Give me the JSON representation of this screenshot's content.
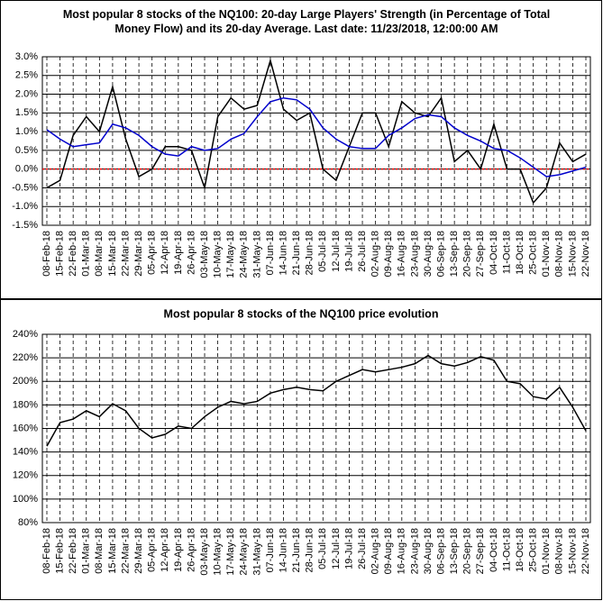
{
  "chart_data": [
    {
      "type": "line",
      "title": "Most popular 8 stocks of the NQ100: 20-day Large Players' Strength (in Percentage of Total Money Flow) and its 20-day Average. Last date: 11/23/2018, 12:00:00 AM",
      "categories": [
        "08-Feb-18",
        "15-Feb-18",
        "22-Feb-18",
        "01-Mar-18",
        "08-Mar-18",
        "15-Mar-18",
        "22-Mar-18",
        "29-Mar-18",
        "05-Apr-18",
        "12-Apr-18",
        "19-Apr-18",
        "26-Apr-18",
        "03-May-18",
        "10-May-18",
        "17-May-18",
        "24-May-18",
        "31-May-18",
        "07-Jun-18",
        "14-Jun-18",
        "21-Jun-18",
        "28-Jun-18",
        "05-Jul-18",
        "12-Jul-18",
        "19-Jul-18",
        "26-Jul-18",
        "02-Aug-18",
        "09-Aug-18",
        "16-Aug-18",
        "23-Aug-18",
        "30-Aug-18",
        "06-Sep-18",
        "13-Sep-18",
        "20-Sep-18",
        "27-Sep-18",
        "04-Oct-18",
        "11-Oct-18",
        "18-Oct-18",
        "25-Oct-18",
        "01-Nov-18",
        "08-Nov-18",
        "15-Nov-18",
        "22-Nov-18"
      ],
      "series": [
        {
          "color": "#000000",
          "values": [
            -0.5,
            -0.3,
            0.9,
            1.4,
            1.0,
            2.2,
            0.8,
            -0.2,
            0.0,
            0.6,
            0.6,
            0.5,
            -0.5,
            1.4,
            1.9,
            1.6,
            1.7,
            2.9,
            1.6,
            1.3,
            1.5,
            0.0,
            -0.3,
            0.6,
            1.5,
            1.5,
            0.6,
            1.8,
            1.5,
            1.4,
            1.9,
            0.2,
            0.5,
            0.0,
            1.2,
            0.0,
            0.0,
            -0.9,
            -0.5,
            0.7,
            0.2,
            0.4
          ]
        },
        {
          "color": "#0000cc",
          "values": [
            1.05,
            0.8,
            0.6,
            0.65,
            0.7,
            1.2,
            1.1,
            0.9,
            0.6,
            0.4,
            0.35,
            0.6,
            0.5,
            0.55,
            0.8,
            0.95,
            1.4,
            1.8,
            1.9,
            1.85,
            1.6,
            1.1,
            0.8,
            0.6,
            0.55,
            0.55,
            0.9,
            1.1,
            1.35,
            1.45,
            1.4,
            1.1,
            0.9,
            0.75,
            0.55,
            0.5,
            0.3,
            0.05,
            -0.2,
            -0.15,
            -0.05,
            0.05
          ]
        }
      ],
      "ylim": [
        -1.5,
        3.0
      ],
      "yticks": [
        {
          "value": -1.5,
          "label": "-1.5%"
        },
        {
          "value": -1.0,
          "label": "-1.0%"
        },
        {
          "value": -0.5,
          "label": "-0.5%"
        },
        {
          "value": 0,
          "label": "0.0%"
        },
        {
          "value": 0.5,
          "label": "0.5%"
        },
        {
          "value": 1.0,
          "label": "1.0%"
        },
        {
          "value": 1.5,
          "label": "1.5%"
        },
        {
          "value": 2.0,
          "label": "2.0%"
        },
        {
          "value": 2.5,
          "label": "2.5%"
        },
        {
          "value": 3.0,
          "label": "3.0%"
        }
      ],
      "grid": true,
      "zero_line_color": "#ff0000"
    },
    {
      "type": "line",
      "title": "Most popular 8 stocks of the NQ100 price evolution",
      "categories": [
        "08-Feb-18",
        "15-Feb-18",
        "22-Feb-18",
        "01-Mar-18",
        "08-Mar-18",
        "15-Mar-18",
        "22-Mar-18",
        "29-Mar-18",
        "05-Apr-18",
        "12-Apr-18",
        "19-Apr-18",
        "26-Apr-18",
        "03-May-18",
        "10-May-18",
        "17-May-18",
        "24-May-18",
        "31-May-18",
        "07-Jun-18",
        "14-Jun-18",
        "21-Jun-18",
        "28-Jun-18",
        "05-Jul-18",
        "12-Jul-18",
        "19-Jul-18",
        "26-Jul-18",
        "02-Aug-18",
        "09-Aug-18",
        "16-Aug-18",
        "23-Aug-18",
        "30-Aug-18",
        "06-Sep-18",
        "13-Sep-18",
        "20-Sep-18",
        "27-Sep-18",
        "04-Oct-18",
        "11-Oct-18",
        "18-Oct-18",
        "25-Oct-18",
        "01-Nov-18",
        "08-Nov-18",
        "15-Nov-18",
        "22-Nov-18"
      ],
      "series": [
        {
          "color": "#000000",
          "values": [
            145,
            165,
            168,
            175,
            170,
            181,
            175,
            160,
            152,
            155,
            162,
            160,
            170,
            178,
            183,
            181,
            183,
            190,
            193,
            195,
            193,
            192,
            200,
            205,
            210,
            208,
            210,
            212,
            215,
            222,
            215,
            213,
            216,
            221,
            218,
            200,
            198,
            187,
            185,
            195,
            178,
            158
          ]
        }
      ],
      "ylim": [
        80,
        240
      ],
      "yticks": [
        {
          "value": 80,
          "label": "80%"
        },
        {
          "value": 100,
          "label": "100%"
        },
        {
          "value": 120,
          "label": "120%"
        },
        {
          "value": 140,
          "label": "140%"
        },
        {
          "value": 160,
          "label": "160%"
        },
        {
          "value": 180,
          "label": "180%"
        },
        {
          "value": 200,
          "label": "200%"
        },
        {
          "value": 220,
          "label": "220%"
        },
        {
          "value": 240,
          "label": "240%"
        }
      ],
      "grid": true
    }
  ]
}
